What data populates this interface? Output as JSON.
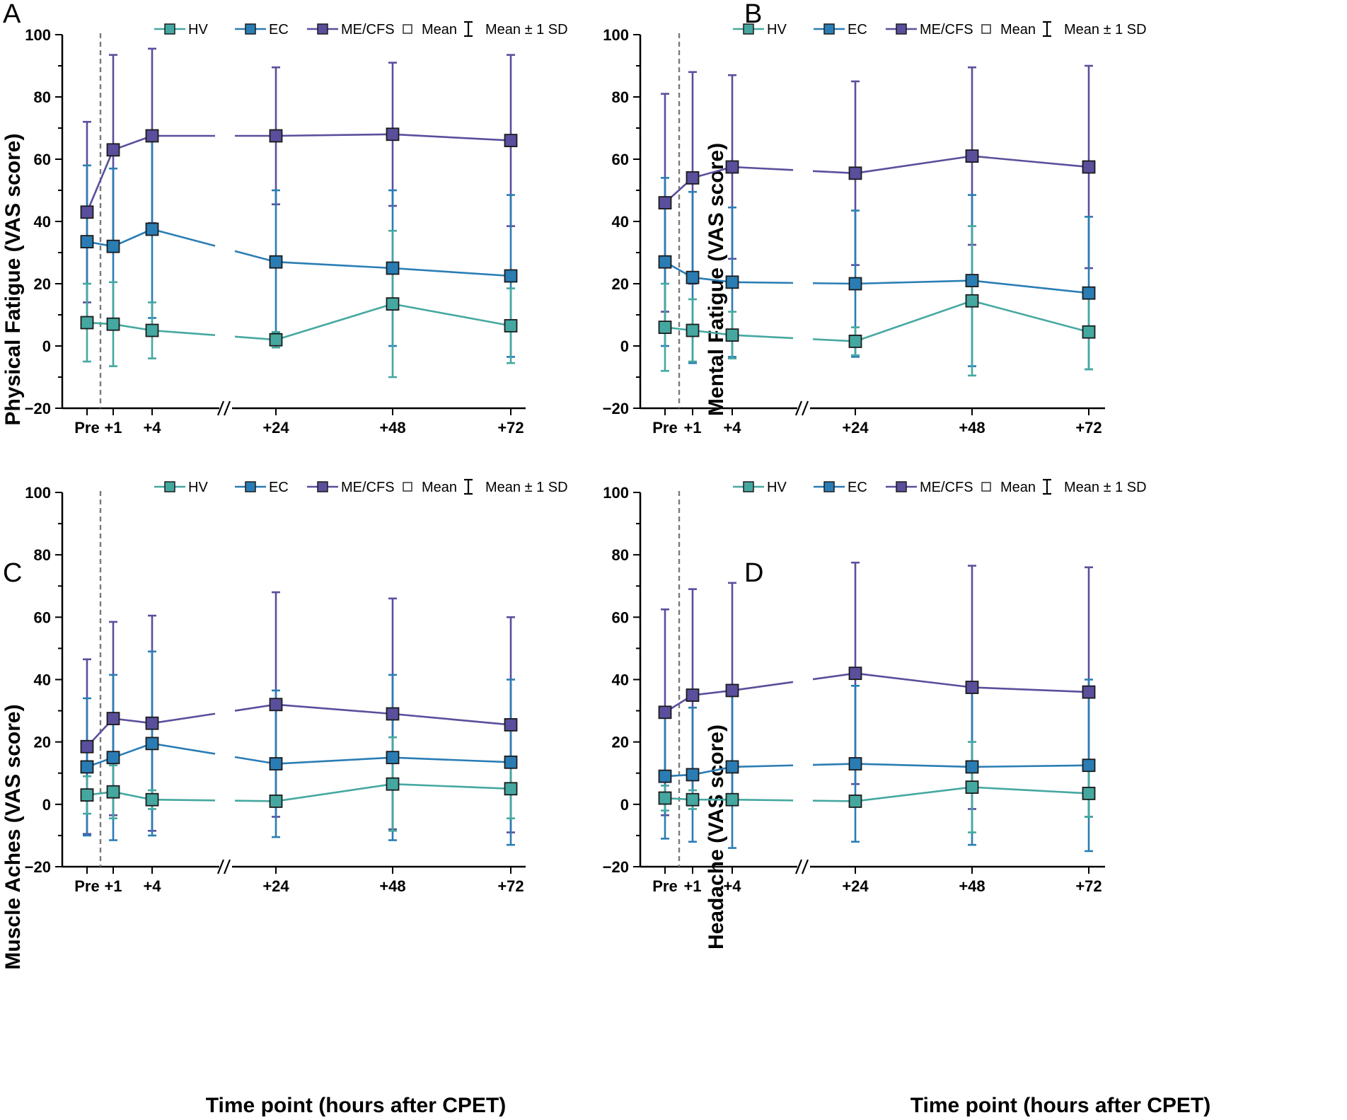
{
  "figure": {
    "xlabel": "Time point (hours after CPET)",
    "tick_labels": [
      "Pre",
      "+1",
      "+4",
      "+24",
      "+48",
      "+72"
    ],
    "y_ticks": [
      "100",
      "80",
      "60",
      "40",
      "20",
      "0",
      "−20"
    ],
    "legend": {
      "hv": "HV",
      "ec": "EC",
      "mecfs": "ME/CFS",
      "mean": "Mean",
      "sd": "Mean ± 1 SD"
    },
    "colors": {
      "hv": "#45a8a0",
      "ec": "#2a7db4",
      "mecfs": "#5a4f9c",
      "dashed": "#7a7a7a"
    }
  },
  "chart_data": [
    {
      "type": "line",
      "panel": "A",
      "ylabel": "Physical Fatigue (VAS score)",
      "categories": [
        "Pre",
        "+1",
        "+4",
        "+24",
        "+48",
        "+72"
      ],
      "ylim": [
        -20,
        100
      ],
      "series": [
        {
          "name": "HV",
          "values": [
            7.5,
            7,
            5,
            2,
            13.5,
            6.5
          ],
          "sd": [
            12.5,
            13.5,
            9,
            2.5,
            23.5,
            12
          ]
        },
        {
          "name": "EC",
          "values": [
            33.5,
            32,
            37.5,
            27,
            25,
            22.5
          ],
          "sd": [
            24.5,
            25,
            28.5,
            23,
            25,
            26
          ]
        },
        {
          "name": "ME/CFS",
          "values": [
            43,
            63,
            67.5,
            67.5,
            68,
            66
          ],
          "sd": [
            29,
            30.5,
            28,
            22,
            23,
            27.5
          ]
        }
      ]
    },
    {
      "type": "line",
      "panel": "B",
      "ylabel": "Mental Fatigue (VAS score)",
      "categories": [
        "Pre",
        "+1",
        "+4",
        "+24",
        "+48",
        "+72"
      ],
      "ylim": [
        -20,
        100
      ],
      "series": [
        {
          "name": "HV",
          "values": [
            6,
            5,
            3.5,
            1.5,
            14.5,
            4.5
          ],
          "sd": [
            14,
            10,
            7.5,
            4.5,
            24,
            12
          ]
        },
        {
          "name": "EC",
          "values": [
            27,
            22,
            20.5,
            20,
            21,
            17
          ],
          "sd": [
            27,
            27.5,
            24,
            23.5,
            27.5,
            24.5
          ]
        },
        {
          "name": "ME/CFS",
          "values": [
            46,
            54,
            57.5,
            55.5,
            61,
            57.5
          ],
          "sd": [
            35,
            34,
            29.5,
            29.5,
            28.5,
            32.5
          ]
        }
      ]
    },
    {
      "type": "line",
      "panel": "C",
      "ylabel": "Muscle Aches (VAS score)",
      "categories": [
        "Pre",
        "+1",
        "+4",
        "+24",
        "+48",
        "+72"
      ],
      "ylim": [
        -20,
        100
      ],
      "series": [
        {
          "name": "HV",
          "values": [
            3,
            4,
            1.5,
            1,
            6.5,
            5
          ],
          "sd": [
            6,
            8.5,
            3,
            1.5,
            15,
            9.5
          ]
        },
        {
          "name": "EC",
          "values": [
            12,
            15,
            19.5,
            13,
            15,
            13.5
          ],
          "sd": [
            22,
            26.5,
            29.5,
            23.5,
            26.5,
            26.5
          ]
        },
        {
          "name": "ME/CFS",
          "values": [
            18.5,
            27.5,
            26,
            32,
            29,
            25.5
          ],
          "sd": [
            28,
            31,
            34.5,
            36,
            37,
            34.5
          ]
        }
      ]
    },
    {
      "type": "line",
      "panel": "D",
      "ylabel": "Headache (VAS score)",
      "categories": [
        "Pre",
        "+1",
        "+4",
        "+24",
        "+48",
        "+72"
      ],
      "ylim": [
        -20,
        100
      ],
      "series": [
        {
          "name": "HV",
          "values": [
            2,
            1.5,
            1.5,
            1,
            5.5,
            3.5
          ],
          "sd": [
            4,
            3,
            1,
            1.5,
            14.5,
            7.5
          ]
        },
        {
          "name": "EC",
          "values": [
            9,
            9.5,
            12,
            13,
            12,
            12.5
          ],
          "sd": [
            20,
            21.5,
            26,
            25,
            25,
            27.5
          ]
        },
        {
          "name": "ME/CFS",
          "values": [
            29.5,
            35,
            36.5,
            42,
            37.5,
            36
          ],
          "sd": [
            33,
            34,
            34.5,
            35.5,
            39,
            40
          ]
        }
      ]
    }
  ]
}
